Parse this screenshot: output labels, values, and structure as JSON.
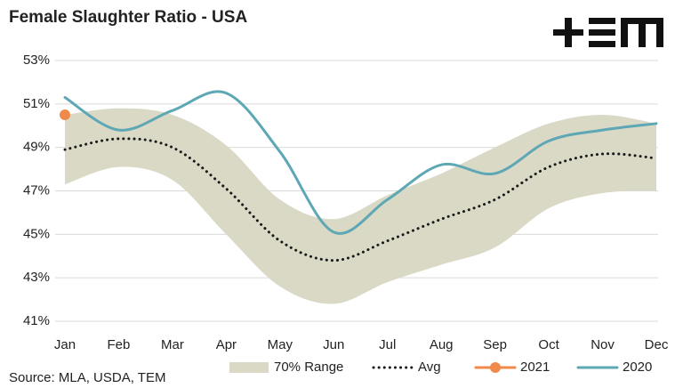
{
  "chart_data": {
    "type": "line",
    "title": "Female Slaughter Ratio - USA",
    "source": "Source: MLA, USDA, TEM",
    "categories": [
      "Jan",
      "Feb",
      "Mar",
      "Apr",
      "May",
      "Jun",
      "Jul",
      "Aug",
      "Sep",
      "Oct",
      "Nov",
      "Dec"
    ],
    "ylim": [
      41,
      53
    ],
    "yticks": [
      {
        "value": 41,
        "label": "41%"
      },
      {
        "value": 43,
        "label": "43%"
      },
      {
        "value": 45,
        "label": "45%"
      },
      {
        "value": 47,
        "label": "47%"
      },
      {
        "value": 49,
        "label": "49%"
      },
      {
        "value": 51,
        "label": "51%"
      },
      {
        "value": 53,
        "label": "53%"
      }
    ],
    "grid": true,
    "range": {
      "name": "70% Range",
      "color": "#d9d9c6",
      "low": [
        47.3,
        48.1,
        47.5,
        45.0,
        42.6,
        41.8,
        42.8,
        43.6,
        44.4,
        46.2,
        46.9,
        47.0
      ],
      "high": [
        50.5,
        50.8,
        50.5,
        49.1,
        46.6,
        45.7,
        46.8,
        47.8,
        49.0,
        50.1,
        50.5,
        50.1
      ]
    },
    "series": [
      {
        "name": "Avg",
        "color": "#1a1a1a",
        "style": "dotted",
        "values": [
          48.9,
          49.4,
          49.0,
          47.1,
          44.7,
          43.8,
          44.7,
          45.7,
          46.6,
          48.1,
          48.7,
          48.5
        ]
      },
      {
        "name": "2021",
        "color": "#f08a4b",
        "style": "solid",
        "values": [
          50.5,
          null,
          null,
          null,
          null,
          null,
          null,
          null,
          null,
          null,
          null,
          null
        ]
      },
      {
        "name": "2020",
        "color": "#5ea7b5",
        "style": "solid",
        "values": [
          51.3,
          49.8,
          50.7,
          51.5,
          48.8,
          45.1,
          46.6,
          48.2,
          47.8,
          49.3,
          49.8,
          50.1
        ]
      }
    ]
  }
}
